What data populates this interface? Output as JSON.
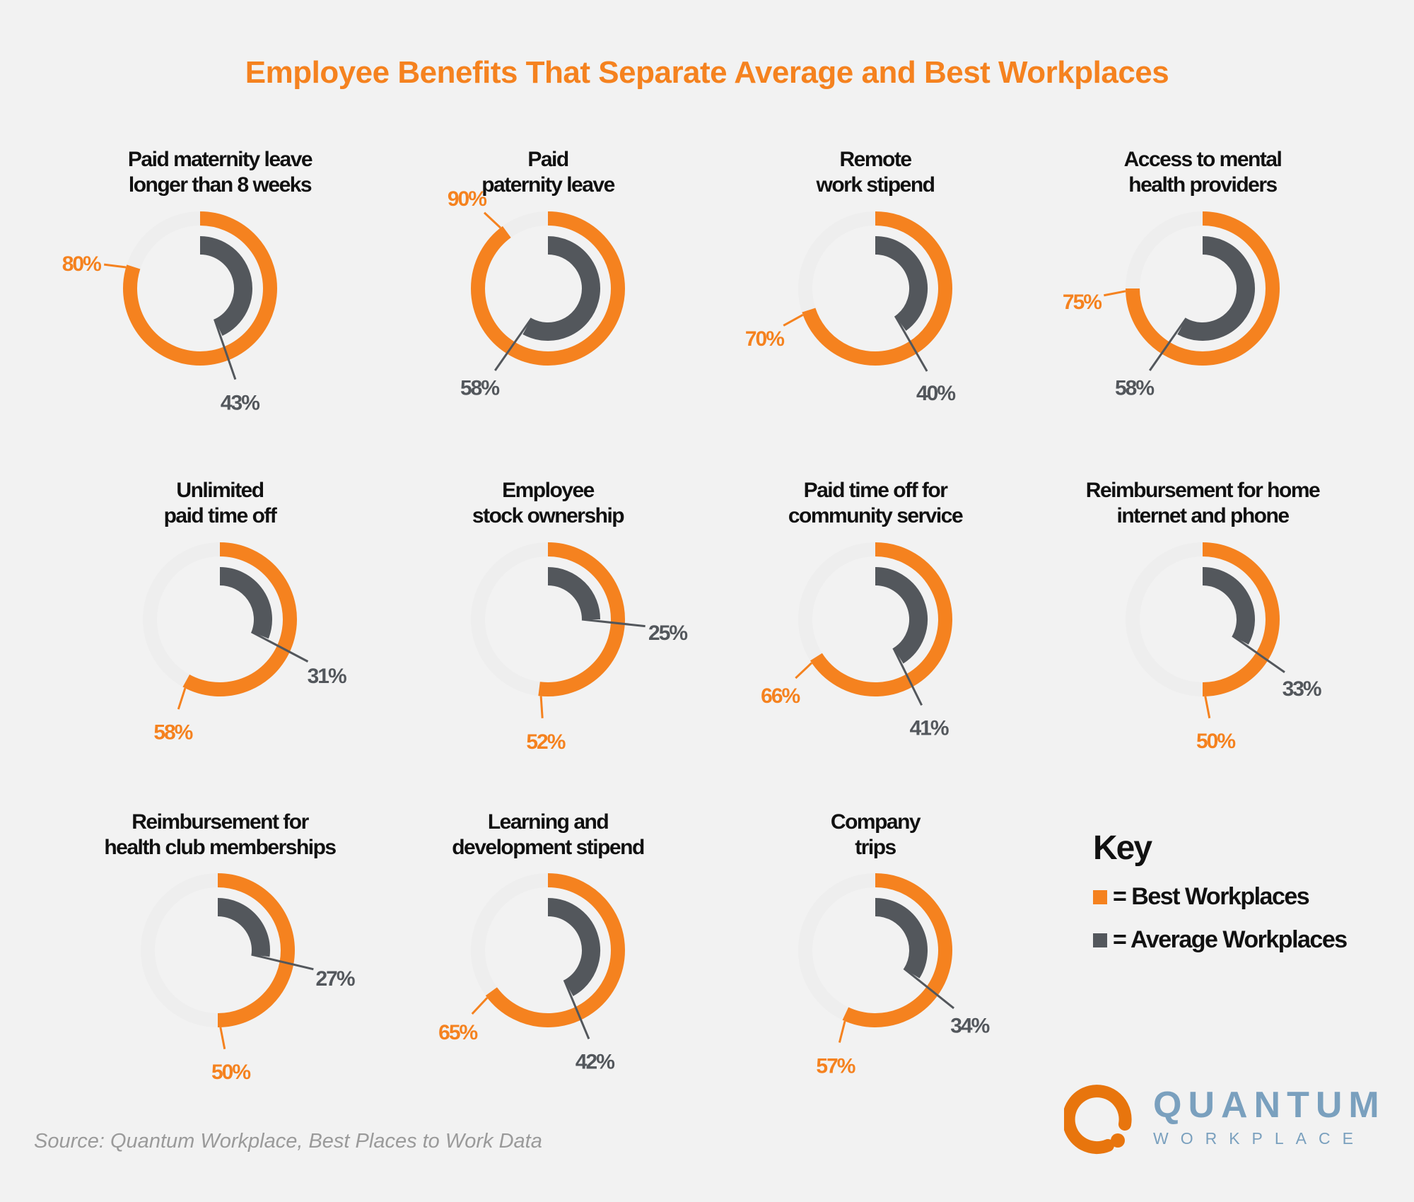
{
  "title": "Employee Benefits That Separate Average and Best Workplaces",
  "colors": {
    "best": "#f5821f",
    "average": "#53575c",
    "background": "#f2f2f2",
    "logo_orange": "#e8750d",
    "logo_blue": "#7aa0be"
  },
  "chart_data": {
    "type": "radial-bar",
    "series_keys": [
      "best",
      "average"
    ],
    "charts": [
      {
        "title": [
          "Paid maternity leave",
          "longer than 8 weeks"
        ],
        "best": 80,
        "average": 43
      },
      {
        "title": [
          "Paid",
          "paternity leave"
        ],
        "best": 90,
        "average": 58
      },
      {
        "title": [
          "Remote",
          "work stipend"
        ],
        "best": 70,
        "average": 40
      },
      {
        "title": [
          "Access to mental",
          "health providers"
        ],
        "best": 75,
        "average": 58
      },
      {
        "title": [
          "Unlimited",
          "paid time off"
        ],
        "best": 58,
        "average": 31
      },
      {
        "title": [
          "Employee",
          "stock ownership"
        ],
        "best": 52,
        "average": 25
      },
      {
        "title": [
          "Paid time off for",
          "community service"
        ],
        "best": 66,
        "average": 41
      },
      {
        "title": [
          "Reimbursement for home",
          "internet and phone"
        ],
        "best": 50,
        "average": 33
      },
      {
        "title": [
          "Reimbursement for",
          "health club memberships"
        ],
        "best": 50,
        "average": 27
      },
      {
        "title": [
          "Learning and",
          "development stipend"
        ],
        "best": 65,
        "average": 42
      },
      {
        "title": [
          "Company",
          "trips"
        ],
        "best": 57,
        "average": 34
      }
    ],
    "unit": "%"
  },
  "key": {
    "title": "Key",
    "items": [
      {
        "label": "= Best Workplaces",
        "color": "#f5821f"
      },
      {
        "label": "= Average Workplaces",
        "color": "#53575c"
      }
    ]
  },
  "source": "Source: Quantum Workplace, Best Places to Work Data",
  "logo": {
    "name": "QUANTUM",
    "sub": "WORKPLACE"
  }
}
